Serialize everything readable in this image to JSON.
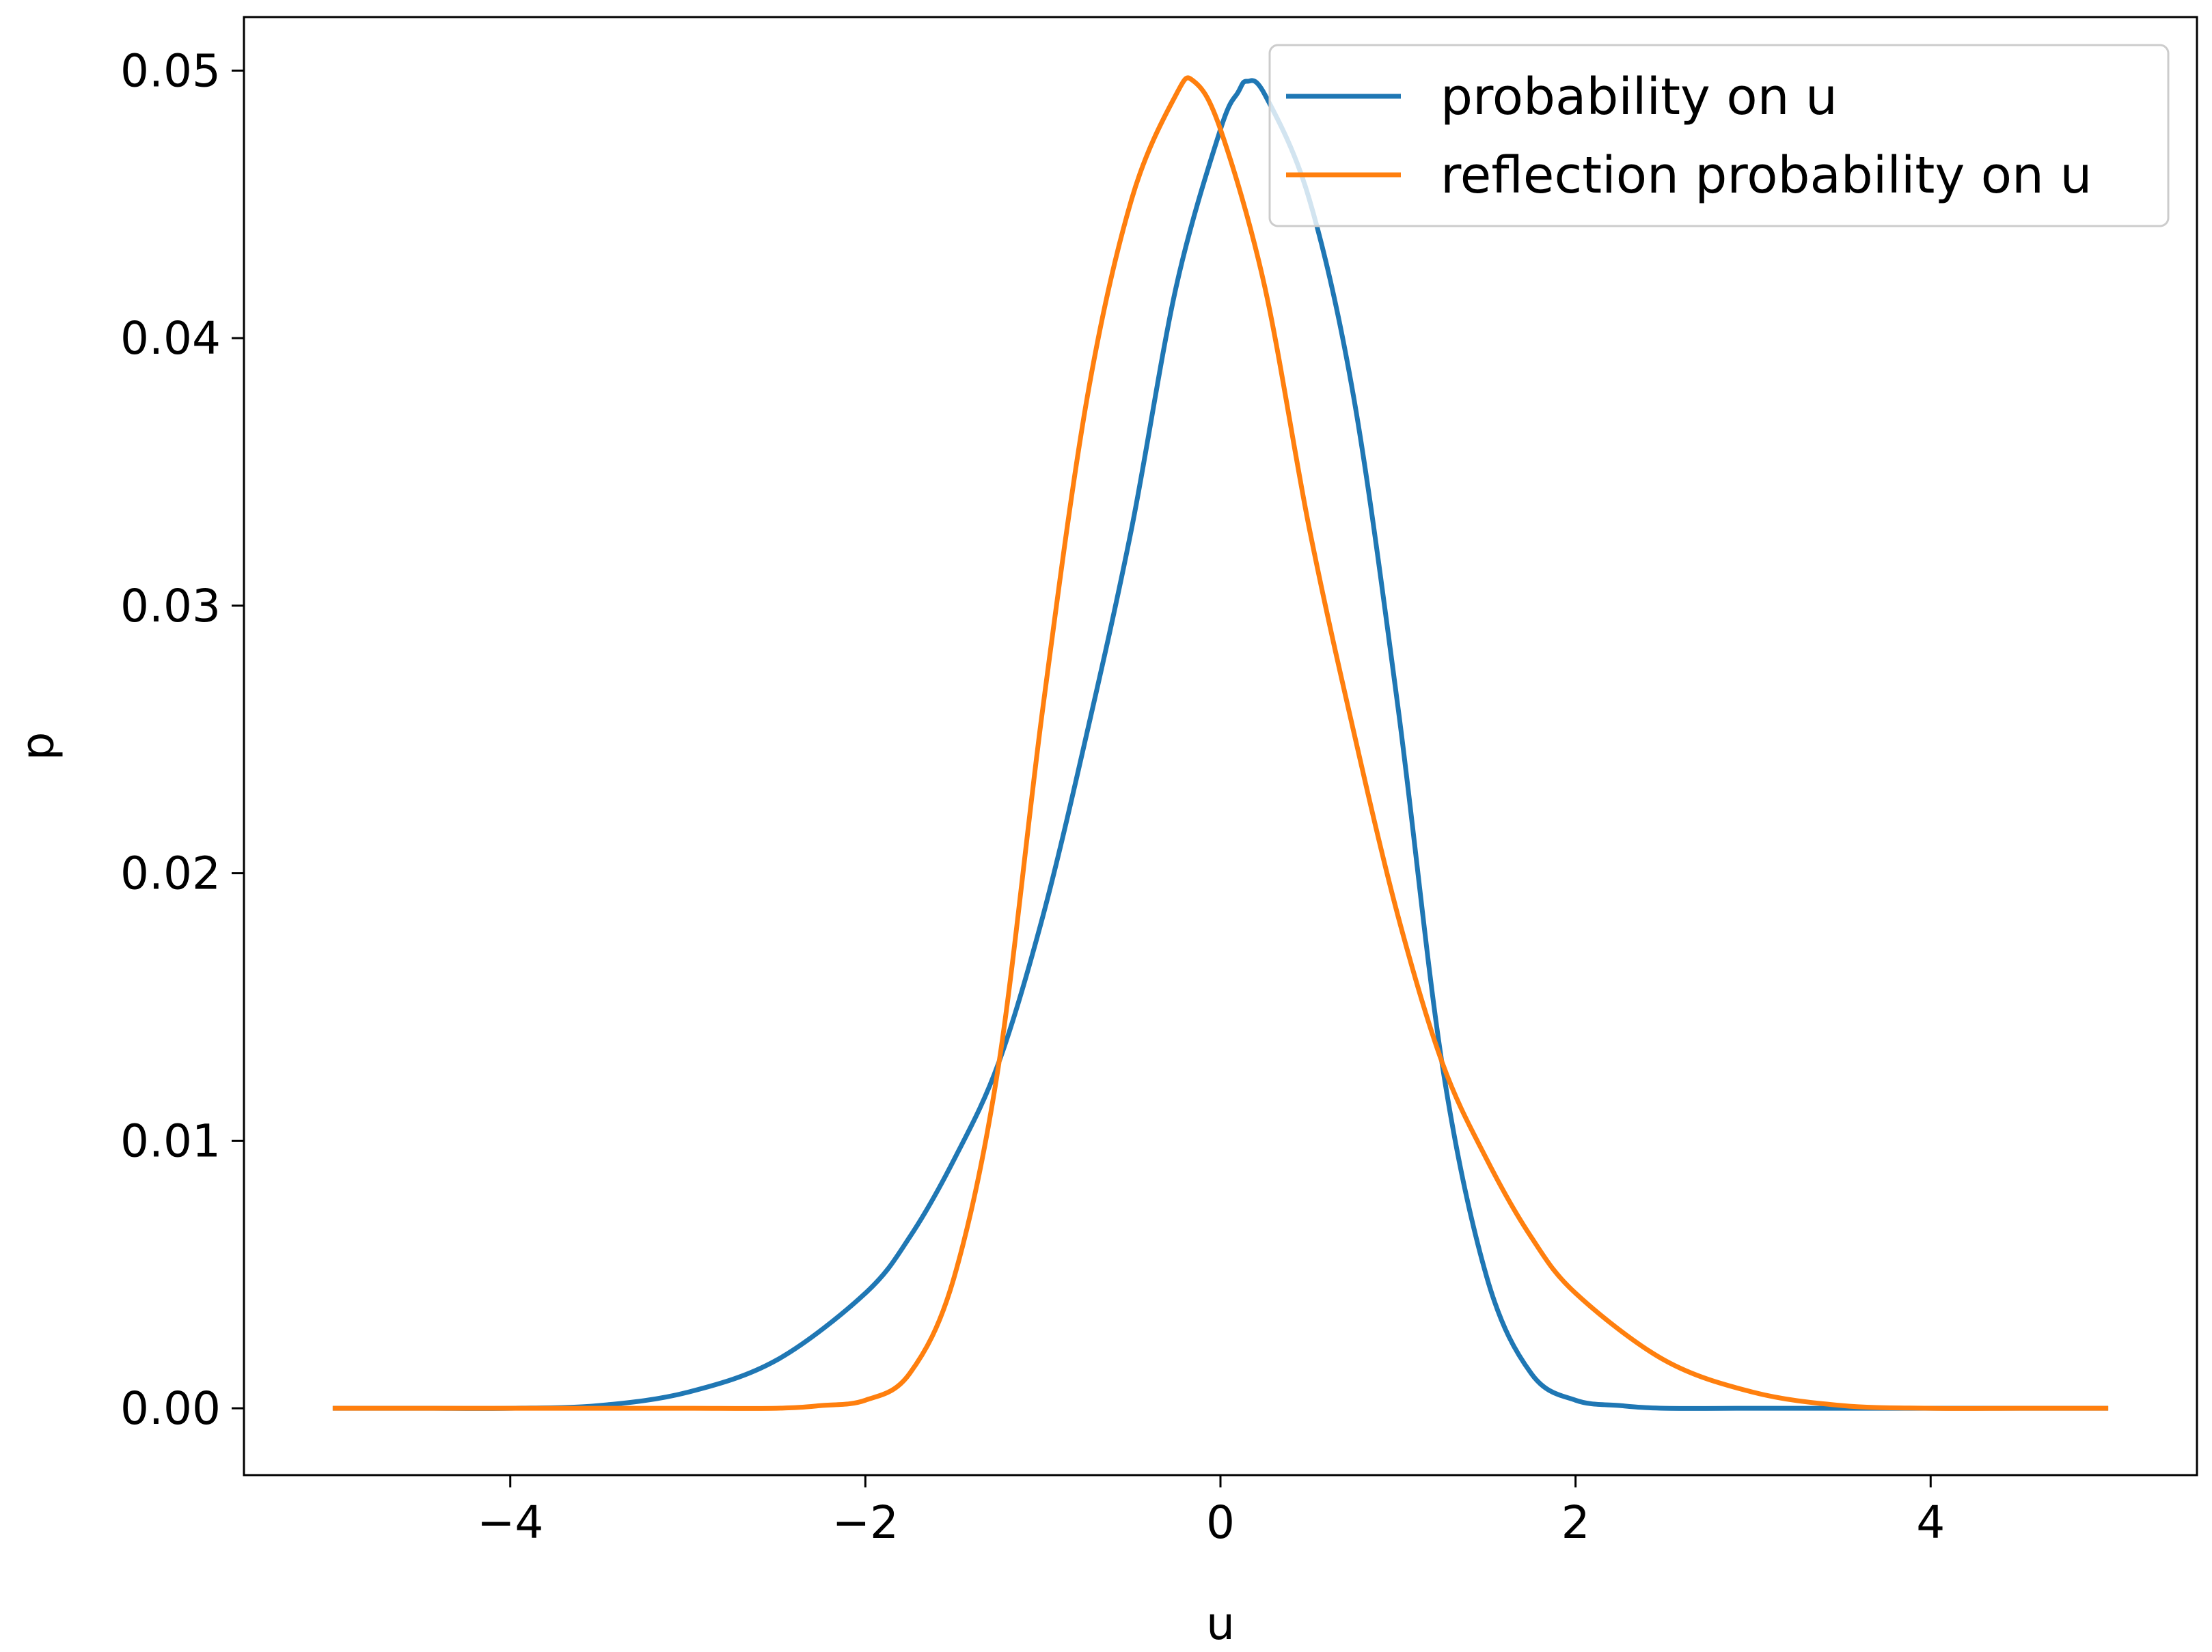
{
  "chart_data": {
    "type": "line",
    "title": "",
    "xlabel": "u",
    "ylabel": "p",
    "xlim": [
      -5.5,
      5.5
    ],
    "ylim": [
      -0.0025,
      0.052
    ],
    "xticks": [
      -4,
      -2,
      0,
      2,
      4
    ],
    "xtick_labels": [
      "−4",
      "−2",
      "0",
      "2",
      "4"
    ],
    "yticks": [
      0.0,
      0.01,
      0.02,
      0.03,
      0.04,
      0.05
    ],
    "ytick_labels": [
      "0.00",
      "0.01",
      "0.02",
      "0.03",
      "0.04",
      "0.05"
    ],
    "grid": false,
    "legend_position": "upper-right",
    "series": [
      {
        "name": "probability on u",
        "color": "#1f77b4",
        "x": [
          -5.0,
          -4.5,
          -4.0,
          -3.5,
          -3.0,
          -2.5,
          -2.0,
          -1.75,
          -1.5,
          -1.25,
          -1.0,
          -0.75,
          -0.5,
          -0.25,
          0.0,
          0.1,
          0.15,
          0.25,
          0.5,
          0.75,
          1.0,
          1.25,
          1.5,
          1.75,
          2.0,
          2.25,
          2.5,
          3.0,
          3.5,
          4.0,
          4.5,
          5.0
        ],
        "y": [
          0.0,
          0.0,
          0.0,
          0.0001,
          0.0006,
          0.0018,
          0.0043,
          0.0064,
          0.0093,
          0.0129,
          0.0184,
          0.0253,
          0.0329,
          0.0419,
          0.0478,
          0.0492,
          0.0496,
          0.0491,
          0.0452,
          0.0378,
          0.0262,
          0.0128,
          0.0049,
          0.0013,
          0.0003,
          0.0001,
          0.0,
          0.0,
          0.0,
          0.0,
          0.0,
          0.0
        ]
      },
      {
        "name": "reflection probability on u",
        "color": "#ff7f0e",
        "x": [
          -5.0,
          -4.5,
          -4.0,
          -3.5,
          -3.0,
          -2.5,
          -2.25,
          -2.0,
          -1.75,
          -1.5,
          -1.25,
          -1.0,
          -0.75,
          -0.5,
          -0.25,
          -0.15,
          0.0,
          0.25,
          0.5,
          0.75,
          1.0,
          1.25,
          1.5,
          1.75,
          2.0,
          2.5,
          3.0,
          3.5,
          4.0,
          4.5,
          5.0
        ],
        "y": [
          0.0,
          0.0,
          0.0,
          0.0,
          0.0,
          0.0,
          0.0001,
          0.0003,
          0.0013,
          0.0049,
          0.0128,
          0.0262,
          0.0378,
          0.0452,
          0.0491,
          0.0496,
          0.0478,
          0.0419,
          0.0329,
          0.0253,
          0.0184,
          0.0129,
          0.0093,
          0.0064,
          0.0043,
          0.0018,
          0.0006,
          0.0001,
          0.0,
          0.0,
          0.0
        ]
      }
    ]
  }
}
